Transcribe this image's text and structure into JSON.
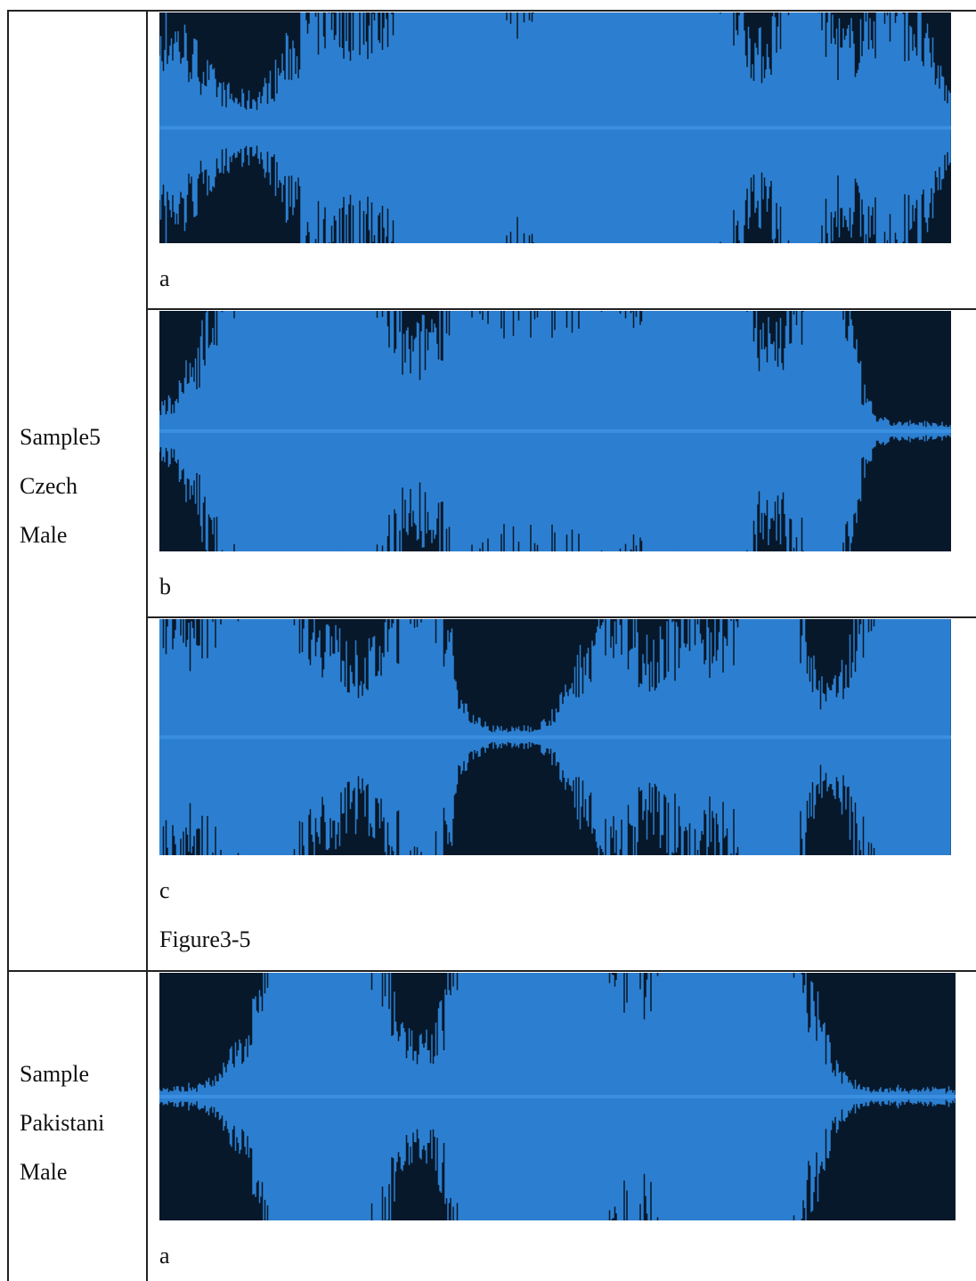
{
  "table": {
    "rows": [
      {
        "label": [
          "Sample5",
          "Czech",
          "Male"
        ],
        "panels": [
          {
            "caption": "a"
          },
          {
            "caption": "b"
          },
          {
            "caption": "c",
            "figure_label": "Figure3-5"
          }
        ]
      },
      {
        "label": [
          "Sample",
          "Pakistani",
          "Male"
        ],
        "panels": [
          {
            "caption": "a"
          }
        ]
      }
    ]
  }
}
